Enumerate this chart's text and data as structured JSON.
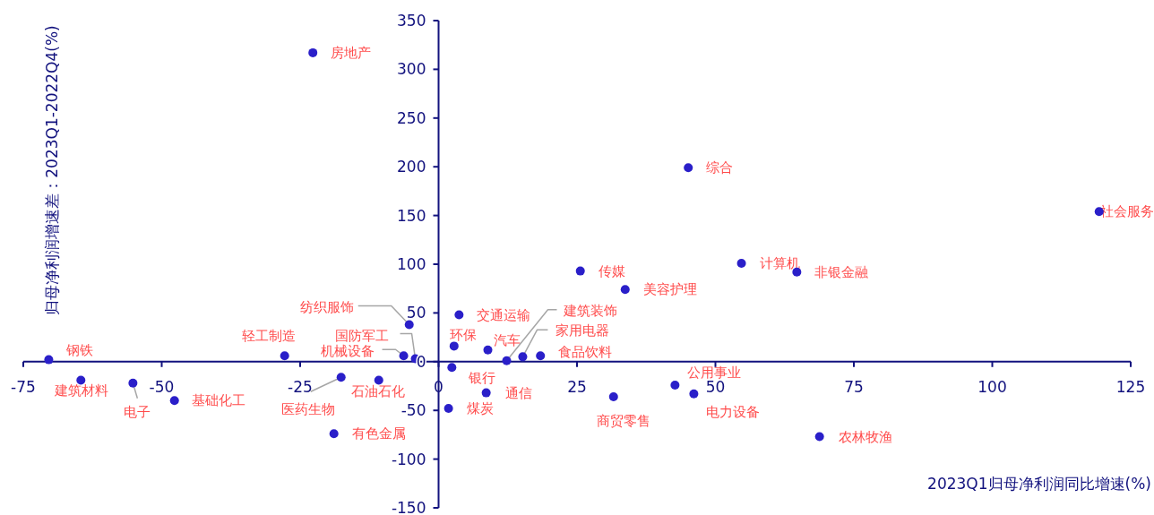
{
  "chart_data": {
    "type": "scatter",
    "xlabel": "2023Q1归母净利润同比增速(%)",
    "ylabel": "归母净利润增速差：2023Q1-2022Q4(%)",
    "xlim": [
      -75,
      125
    ],
    "ylim": [
      -150,
      350
    ],
    "xticks": [
      -75,
      -50,
      -25,
      0,
      25,
      50,
      75,
      100,
      125
    ],
    "yticks": [
      -150,
      -100,
      -50,
      0,
      50,
      100,
      150,
      200,
      250,
      300,
      350
    ],
    "marker": "circle",
    "color": "#2a1fc9",
    "x": [
      -22.7,
      45.1,
      119.3,
      54.7,
      64.7,
      25.6,
      33.7,
      -5.3,
      3.7,
      -27.8,
      -70.4,
      -6.3,
      -4.2,
      2.8,
      8.9,
      12.3,
      15.2,
      18.4,
      2.4,
      -64.6,
      -55.2,
      -47.7,
      -17.6,
      -10.8,
      -18.9,
      8.6,
      1.8,
      31.6,
      42.7,
      46.1,
      68.8
    ],
    "values": [
      317,
      199,
      154,
      101,
      92,
      93,
      74,
      38,
      48,
      6,
      2,
      6,
      3,
      16,
      12,
      1,
      5,
      6,
      -6,
      -19,
      -22,
      -40,
      -16,
      -19,
      -74,
      -32,
      -48,
      -36,
      -24,
      -33,
      -77
    ],
    "annotations": [
      {
        "text": "房地产",
        "x": -22.7,
        "y": 317
      },
      {
        "text": "综合",
        "x": 45.1,
        "y": 199
      },
      {
        "text": "社会服务",
        "x": 119.3,
        "y": 154
      },
      {
        "text": "计算机",
        "x": 54.7,
        "y": 101
      },
      {
        "text": "非银金融",
        "x": 64.7,
        "y": 92
      },
      {
        "text": "传媒",
        "x": 25.6,
        "y": 93
      },
      {
        "text": "美容护理",
        "x": 33.7,
        "y": 74
      },
      {
        "text": "纺织服饰",
        "x": -5.3,
        "y": 38
      },
      {
        "text": "交通运输",
        "x": 3.7,
        "y": 48
      },
      {
        "text": "轻工制造",
        "x": -27.8,
        "y": 6
      },
      {
        "text": "钢铁",
        "x": -70.4,
        "y": 2
      },
      {
        "text": "机械设备",
        "x": -6.3,
        "y": 6
      },
      {
        "text": "国防军工",
        "x": -4.2,
        "y": 3
      },
      {
        "text": "环保",
        "x": 2.8,
        "y": 16
      },
      {
        "text": "汽车",
        "x": 8.9,
        "y": 12
      },
      {
        "text": "建筑装饰",
        "x": 12.3,
        "y": 1
      },
      {
        "text": "家用电器",
        "x": 15.2,
        "y": 5
      },
      {
        "text": "食品饮料",
        "x": 18.4,
        "y": 6
      },
      {
        "text": "银行",
        "x": 2.4,
        "y": -6
      },
      {
        "text": "建筑材料",
        "x": -64.6,
        "y": -19
      },
      {
        "text": "电子",
        "x": -55.2,
        "y": -22
      },
      {
        "text": "基础化工",
        "x": -47.7,
        "y": -40
      },
      {
        "text": "医药生物",
        "x": -17.6,
        "y": -16
      },
      {
        "text": "石油石化",
        "x": -10.8,
        "y": -19
      },
      {
        "text": "有色金属",
        "x": -18.9,
        "y": -74
      },
      {
        "text": "通信",
        "x": 8.6,
        "y": -32
      },
      {
        "text": "煤炭",
        "x": 1.8,
        "y": -48
      },
      {
        "text": "商贸零售",
        "x": 31.6,
        "y": -36
      },
      {
        "text": "公用事业",
        "x": 42.7,
        "y": -24
      },
      {
        "text": "电力设备",
        "x": 46.1,
        "y": -33
      },
      {
        "text": "农林牧渔",
        "x": 68.8,
        "y": -77
      }
    ]
  }
}
